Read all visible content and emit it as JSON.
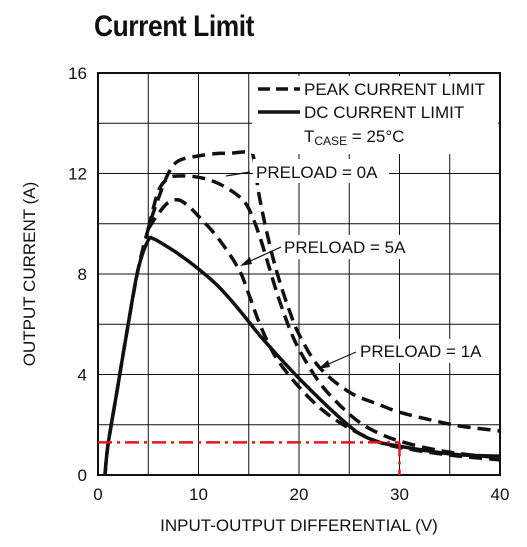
{
  "title": "Current Limit",
  "chart_data": {
    "type": "line",
    "xlabel": "INPUT-OUTPUT DIFFERENTIAL (V)",
    "ylabel": "OUTPUT CURRENT (A)",
    "xlim": [
      0,
      40
    ],
    "ylim": [
      0,
      16
    ],
    "xticks": [
      "0",
      "10",
      "20",
      "30",
      "40"
    ],
    "yticks": [
      "0",
      "4",
      "8",
      "12",
      "16"
    ],
    "grid": true,
    "legend": {
      "placement": "top-right",
      "entries": [
        {
          "label": "PEAK CURRENT LIMIT",
          "style": "dashed"
        },
        {
          "label": "DC CURRENT LIMIT",
          "style": "solid"
        }
      ],
      "condition_main": "T",
      "condition_sub": "CASE",
      "condition_rest": " = 25°C"
    },
    "annotations": [
      {
        "text": "PRELOAD = 0A"
      },
      {
        "text": "PRELOAD = 5A"
      },
      {
        "text": "PRELOAD = 1A"
      }
    ],
    "reference": {
      "x": 30,
      "y": 1.3,
      "color": "#e8141b"
    },
    "series": [
      {
        "label": "PRELOAD = 0A",
        "style": "dashed",
        "points": [
          [
            0.7,
            0
          ],
          [
            1,
            1.2
          ],
          [
            2,
            3.6
          ],
          [
            3,
            6
          ],
          [
            4,
            8.2
          ],
          [
            5,
            9.8
          ],
          [
            6,
            11
          ],
          [
            7,
            12
          ],
          [
            8,
            12.5
          ],
          [
            10,
            12.7
          ],
          [
            12,
            12.8
          ],
          [
            13,
            12.8
          ],
          [
            15,
            12.85
          ],
          [
            15.5,
            12.6
          ],
          [
            16,
            11.2
          ],
          [
            17,
            9.3
          ],
          [
            18,
            7.8
          ],
          [
            19,
            6.6
          ],
          [
            20,
            5.6
          ],
          [
            22,
            4.3
          ],
          [
            25,
            3.3
          ],
          [
            28,
            2.8
          ],
          [
            30,
            2.5
          ],
          [
            33,
            2.2
          ],
          [
            36,
            1.95
          ],
          [
            40,
            1.75
          ]
        ]
      },
      {
        "label": "PRELOAD = 1A",
        "style": "dashed",
        "points": [
          [
            5,
            9.8
          ],
          [
            6,
            11.3
          ],
          [
            7,
            11.8
          ],
          [
            8,
            11.9
          ],
          [
            10,
            11.85
          ],
          [
            12,
            11.6
          ],
          [
            14,
            11.1
          ],
          [
            15,
            10.6
          ],
          [
            16,
            9.6
          ],
          [
            17,
            8.3
          ],
          [
            18,
            7
          ],
          [
            19,
            5.9
          ],
          [
            20,
            5
          ],
          [
            22,
            3.7
          ],
          [
            24,
            2.8
          ],
          [
            26,
            2.1
          ],
          [
            28,
            1.65
          ],
          [
            30,
            1.35
          ],
          [
            33,
            1.05
          ],
          [
            36,
            0.85
          ],
          [
            40,
            0.68
          ]
        ]
      },
      {
        "label": "PRELOAD = 5A",
        "style": "dashed",
        "points": [
          [
            5,
            9.8
          ],
          [
            6,
            10.4
          ],
          [
            7,
            10.85
          ],
          [
            8,
            10.95
          ],
          [
            9,
            10.7
          ],
          [
            10,
            10.3
          ],
          [
            12,
            9.4
          ],
          [
            14,
            8.2
          ],
          [
            15,
            7.2
          ],
          [
            16,
            6.1
          ],
          [
            17,
            5.2
          ],
          [
            18,
            4.5
          ],
          [
            20,
            3.5
          ],
          [
            22,
            2.7
          ],
          [
            24,
            2.1
          ],
          [
            26,
            1.65
          ],
          [
            28,
            1.3
          ],
          [
            30,
            1.1
          ],
          [
            33,
            0.9
          ],
          [
            36,
            0.75
          ],
          [
            40,
            0.6
          ]
        ]
      },
      {
        "label": "DC CURRENT LIMIT",
        "style": "solid",
        "points": [
          [
            0.7,
            0
          ],
          [
            1,
            1.2
          ],
          [
            2,
            3.6
          ],
          [
            3,
            6
          ],
          [
            4,
            8.2
          ],
          [
            5,
            9.35
          ],
          [
            5.5,
            9.4
          ],
          [
            6,
            9.3
          ],
          [
            8,
            8.8
          ],
          [
            10,
            8.2
          ],
          [
            12,
            7.5
          ],
          [
            14,
            6.6
          ],
          [
            16,
            5.6
          ],
          [
            18,
            4.7
          ],
          [
            20,
            3.85
          ],
          [
            22,
            3.05
          ],
          [
            24,
            2.3
          ],
          [
            26,
            1.65
          ],
          [
            28,
            1.3
          ],
          [
            30,
            1.15
          ],
          [
            33,
            0.95
          ],
          [
            36,
            0.8
          ],
          [
            40,
            0.75
          ]
        ]
      }
    ]
  }
}
